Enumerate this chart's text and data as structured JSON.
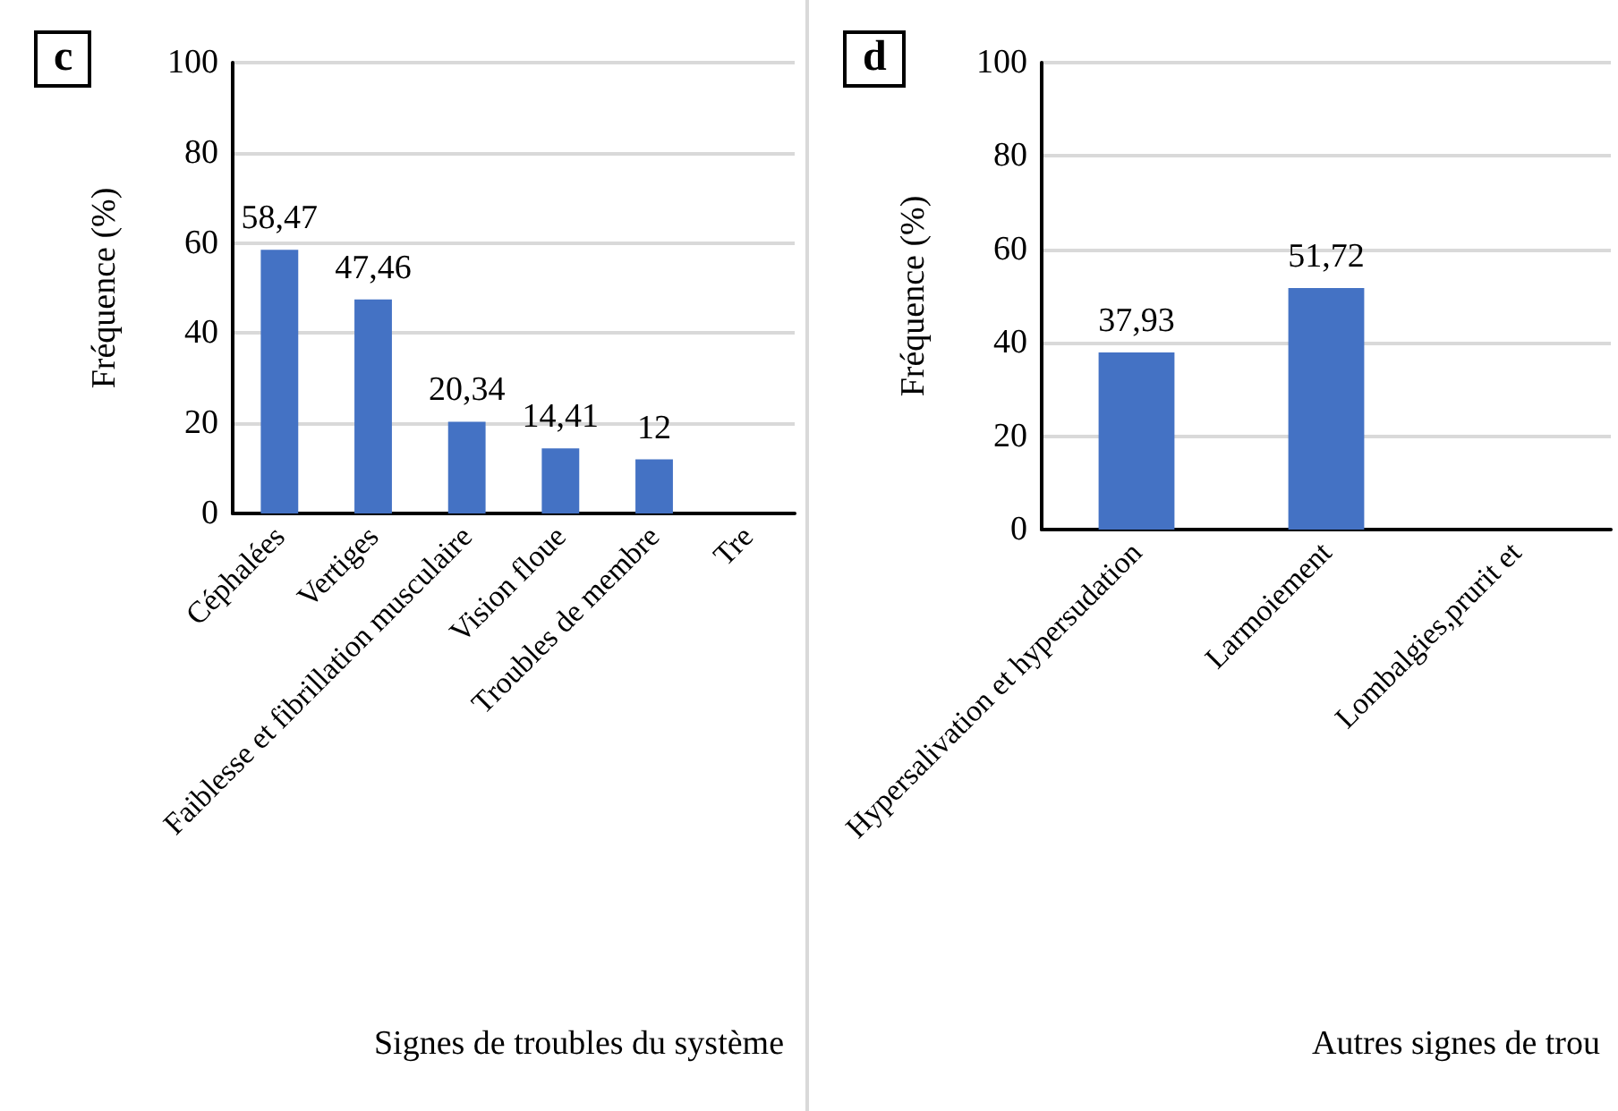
{
  "chart_data": [
    {
      "type": "bar",
      "title": "c",
      "xlabel": "Signes de troubles du système",
      "ylabel": "Fréquence (%)",
      "categories": [
        "Céphalées",
        "Vertiges",
        "Faiblesse et fibrillation musculaire",
        "Vision floue",
        "Troubles de membre",
        "Tre"
      ],
      "values": [
        58.47,
        47.46,
        20.34,
        14.41,
        12,
        null
      ],
      "value_labels": [
        "58,47",
        "47,46",
        "20,34",
        "14,41",
        "12",
        null
      ],
      "color": "#4472c4",
      "ylim": [
        0,
        100
      ],
      "yticks": [
        0,
        20,
        40,
        60,
        80,
        100
      ],
      "grid": "y"
    },
    {
      "type": "bar",
      "title": "d",
      "xlabel": "Autres signes de trou",
      "ylabel": "Fréquence (%)",
      "categories": [
        "Hypersalivation et hypersudation",
        "Larmoiement",
        "Lombalgies,prurit et"
      ],
      "values": [
        37.93,
        51.72,
        null
      ],
      "value_labels": [
        "37,93",
        "51,72",
        null
      ],
      "color": "#4472c4",
      "ylim": [
        0,
        100
      ],
      "yticks": [
        0,
        20,
        40,
        60,
        80,
        100
      ],
      "grid": "y"
    }
  ]
}
